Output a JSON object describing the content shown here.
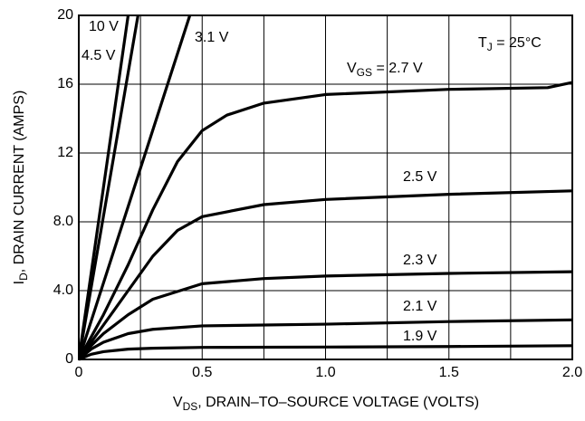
{
  "chart_data": {
    "type": "line",
    "x_label": {
      "parts": [
        "V",
        "DS",
        ", DRAIN–TO–SOURCE VOLTAGE (VOLTS)"
      ]
    },
    "y_label": {
      "parts": [
        "I",
        "D",
        ", DRAIN CURRENT (AMPS)"
      ]
    },
    "annotation": {
      "parts": [
        "T",
        "J",
        " = 25°C"
      ]
    },
    "series_prefix": {
      "parts": [
        "V",
        "GS",
        " = "
      ]
    },
    "xlim": [
      0,
      2.0
    ],
    "ylim": [
      0,
      20
    ],
    "xticks": [
      0,
      0.5,
      {
        "value": 1.0,
        "label": "1.0"
      },
      1.5,
      {
        "value": 2.0,
        "label": "2.0"
      }
    ],
    "xminor": [
      0.25,
      0.75,
      1.25,
      1.75
    ],
    "yticks": [
      0,
      {
        "value": 4,
        "label": "4.0"
      },
      {
        "value": 8,
        "label": "8.0"
      },
      12,
      16,
      20
    ],
    "grid": true,
    "series": [
      {
        "name": "10 V",
        "color": "#000000",
        "x": [
          0,
          0.2
        ],
        "values": [
          0,
          20
        ]
      },
      {
        "name": "4.5 V",
        "color": "#000000",
        "x": [
          0,
          0.24
        ],
        "values": [
          0,
          20
        ]
      },
      {
        "name": "3.1 V",
        "color": "#000000",
        "x": [
          0,
          0.45
        ],
        "values": [
          0,
          20
        ]
      },
      {
        "name": "2.7 V",
        "color": "#000000",
        "x": [
          0,
          0.05,
          0.1,
          0.2,
          0.3,
          0.4,
          0.5,
          0.6,
          0.75,
          1,
          1.5,
          1.9,
          2
        ],
        "values": [
          0,
          1.3,
          2.6,
          5.5,
          8.7,
          11.5,
          13.3,
          14.2,
          14.9,
          15.4,
          15.7,
          15.8,
          16.1
        ]
      },
      {
        "name": "2.5 V",
        "color": "#000000",
        "x": [
          0,
          0.05,
          0.1,
          0.2,
          0.3,
          0.4,
          0.5,
          0.75,
          1,
          1.5,
          2
        ],
        "values": [
          0,
          1,
          2,
          4,
          6,
          7.5,
          8.3,
          9,
          9.3,
          9.6,
          9.8
        ]
      },
      {
        "name": "2.3 V",
        "color": "#000000",
        "x": [
          0,
          0.05,
          0.1,
          0.2,
          0.3,
          0.5,
          0.75,
          1,
          1.5,
          2
        ],
        "values": [
          0,
          0.8,
          1.5,
          2.6,
          3.5,
          4.4,
          4.7,
          4.85,
          5.0,
          5.1
        ]
      },
      {
        "name": "2.1 V",
        "color": "#000000",
        "x": [
          0,
          0.05,
          0.1,
          0.2,
          0.3,
          0.5,
          1,
          1.5,
          2
        ],
        "values": [
          0,
          0.6,
          1.0,
          1.5,
          1.75,
          1.95,
          2.05,
          2.2,
          2.3
        ]
      },
      {
        "name": "1.9 V",
        "color": "#000000",
        "x": [
          0,
          0.05,
          0.1,
          0.2,
          0.3,
          0.5,
          1,
          1.5,
          2
        ],
        "values": [
          0,
          0.3,
          0.45,
          0.6,
          0.65,
          0.7,
          0.72,
          0.75,
          0.8
        ]
      }
    ]
  }
}
